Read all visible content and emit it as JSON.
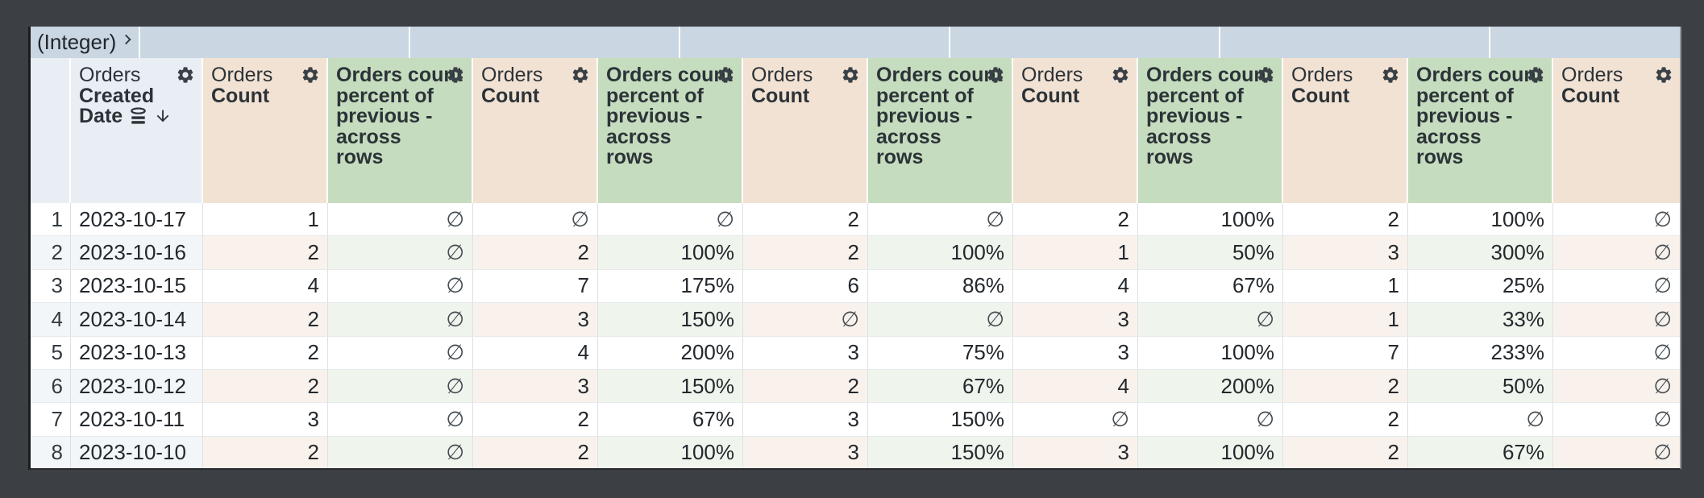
{
  "pivot": {
    "label": "(Integer)",
    "expand_icon": "chevron-right-icon",
    "group_values": [
      "",
      "",
      "",
      "",
      "",
      ""
    ]
  },
  "columns": [
    {
      "kind": "rownum",
      "label": ""
    },
    {
      "kind": "dimension",
      "view": "Orders",
      "field": "Created Date",
      "icons": [
        "dimension-fill-icon",
        "sort-desc-icon"
      ],
      "has_gear": true
    },
    {
      "kind": "measure",
      "view": "Orders",
      "field": "Count",
      "has_gear": true
    },
    {
      "kind": "calc",
      "label": "Orders count\npercent of\nprevious -\nacross\nrows",
      "has_gear": true
    },
    {
      "kind": "measure",
      "view": "Orders",
      "field": "Count",
      "has_gear": true
    },
    {
      "kind": "calc",
      "label": "Orders count\npercent of\nprevious -\nacross\nrows",
      "has_gear": true
    },
    {
      "kind": "measure",
      "view": "Orders",
      "field": "Count",
      "has_gear": true
    },
    {
      "kind": "calc",
      "label": "Orders count\npercent of\nprevious -\nacross\nrows",
      "has_gear": true
    },
    {
      "kind": "measure",
      "view": "Orders",
      "field": "Count",
      "has_gear": true
    },
    {
      "kind": "calc",
      "label": "Orders count\npercent of\nprevious -\nacross\nrows",
      "has_gear": true
    },
    {
      "kind": "measure",
      "view": "Orders",
      "field": "Count",
      "has_gear": true
    },
    {
      "kind": "calc",
      "label": "Orders count\npercent of\nprevious -\nacross\nrows",
      "has_gear": true
    },
    {
      "kind": "measure",
      "view": "Orders",
      "field": "Count",
      "has_gear": true
    }
  ],
  "null_symbol": "∅",
  "rows": [
    {
      "num": "1",
      "date": "2023-10-17",
      "values": [
        "1",
        "∅",
        "∅",
        "∅",
        "2",
        "∅",
        "2",
        "100%",
        "2",
        "100%",
        "∅"
      ]
    },
    {
      "num": "2",
      "date": "2023-10-16",
      "values": [
        "2",
        "∅",
        "2",
        "100%",
        "2",
        "100%",
        "1",
        "50%",
        "3",
        "300%",
        "∅"
      ]
    },
    {
      "num": "3",
      "date": "2023-10-15",
      "values": [
        "4",
        "∅",
        "7",
        "175%",
        "6",
        "86%",
        "4",
        "67%",
        "1",
        "25%",
        "∅"
      ]
    },
    {
      "num": "4",
      "date": "2023-10-14",
      "values": [
        "2",
        "∅",
        "3",
        "150%",
        "∅",
        "∅",
        "3",
        "∅",
        "1",
        "33%",
        "∅"
      ]
    },
    {
      "num": "5",
      "date": "2023-10-13",
      "values": [
        "2",
        "∅",
        "4",
        "200%",
        "3",
        "75%",
        "3",
        "100%",
        "7",
        "233%",
        "∅"
      ]
    },
    {
      "num": "6",
      "date": "2023-10-12",
      "values": [
        "2",
        "∅",
        "3",
        "150%",
        "2",
        "67%",
        "4",
        "200%",
        "2",
        "50%",
        "∅"
      ]
    },
    {
      "num": "7",
      "date": "2023-10-11",
      "values": [
        "3",
        "∅",
        "2",
        "67%",
        "3",
        "150%",
        "∅",
        "∅",
        "2",
        "∅",
        "∅"
      ]
    },
    {
      "num": "8",
      "date": "2023-10-10",
      "values": [
        "2",
        "∅",
        "2",
        "100%",
        "3",
        "150%",
        "3",
        "100%",
        "2",
        "67%",
        "∅"
      ]
    }
  ],
  "colors": {
    "frame_background": "#3c4045",
    "pivot_band": "#cad6e2",
    "dimension_header": "#e9eef4",
    "measure_header": "#f2e2d3",
    "calc_header": "#c5dcbe",
    "stripe_plain": "#f3f6f9",
    "stripe_measure": "#f9f2ec",
    "stripe_calc": "#eff5ed",
    "text": "#23282d"
  }
}
